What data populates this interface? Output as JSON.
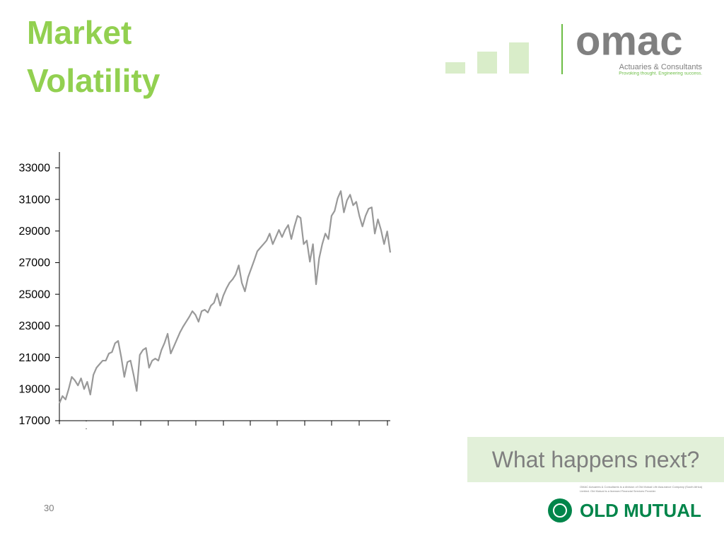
{
  "title": "Market Volatility",
  "callout": "What happens next?",
  "page_number": "30",
  "logo": {
    "name": "omac",
    "tagline": "Actuaries & Consultants",
    "slogan": "Provoking thought. Engineering success."
  },
  "footer": {
    "disclaimer": "OMAC Actuaries & Consultants is a division of Old Mutual Life Assurance Company (South Africa) Limited. Old Mutual is a licensed Financial Services Provider",
    "brand": "OLD MUTUAL"
  },
  "chart_data": {
    "type": "line",
    "color": "#999999",
    "values": [
      18100,
      18560,
      18340,
      19000,
      19770,
      19550,
      19230,
      19680,
      19000,
      19460,
      18650,
      19900,
      20350,
      20580,
      20800,
      20800,
      21250,
      21340,
      21900,
      22050,
      21020,
      19770,
      20710,
      20800,
      19900,
      18880,
      21160,
      21470,
      21600,
      20350,
      20800,
      20930,
      20800,
      21470,
      21920,
      22500,
      21250,
      21690,
      22140,
      22590,
      22950,
      23260,
      23570,
      23930,
      23700,
      23260,
      23930,
      24020,
      23840,
      24280,
      24460,
      25040,
      24280,
      24910,
      25360,
      25720,
      25940,
      26250,
      26830,
      25720,
      25180,
      26070,
      26610,
      27150,
      27720,
      27950,
      28170,
      28400,
      28840,
      28170,
      28620,
      29070,
      28620,
      29070,
      29380,
      28490,
      29290,
      29960,
      29830,
      28170,
      28400,
      27060,
      28170,
      25630,
      27280,
      28170,
      28840,
      28490,
      29960,
      30270,
      31080,
      31530,
      30180,
      30940,
      31300,
      30630,
      30850,
      29960,
      29290,
      29960,
      30410,
      30500,
      28840,
      29740,
      29070,
      28170,
      28980,
      27640
    ],
    "ylim": [
      17000,
      34000
    ],
    "yticks": [
      17000,
      19000,
      21000,
      23000,
      25000,
      27000,
      29000,
      31000,
      33000
    ]
  }
}
